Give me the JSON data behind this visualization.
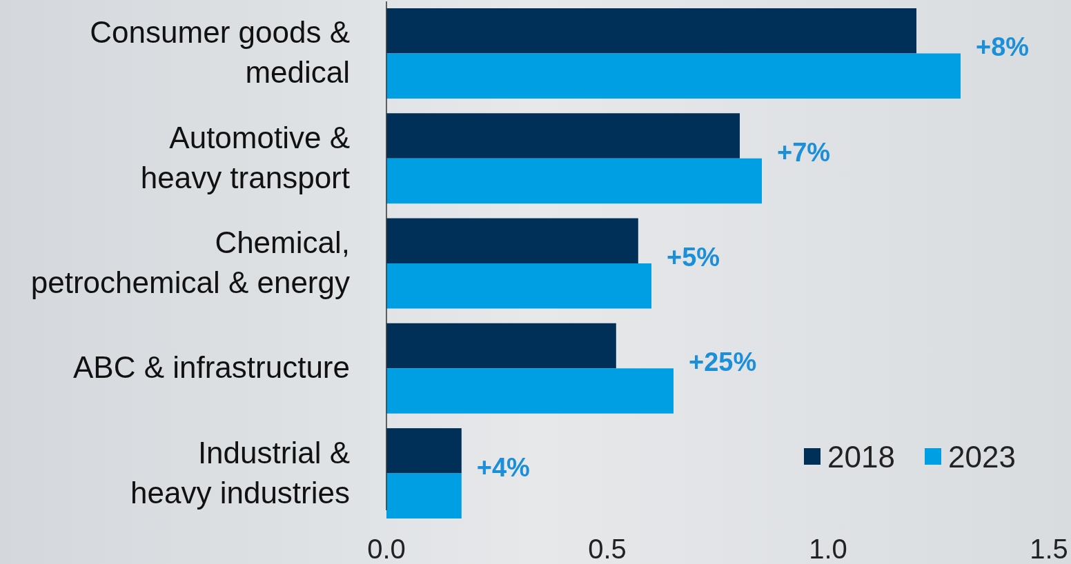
{
  "chart_data": {
    "type": "bar",
    "orientation": "horizontal",
    "categories": [
      "Consumer goods & medical",
      "Automotive & heavy transport",
      "Chemical, petrochemical & energy",
      "ABC & infrastructure",
      "Industrial & heavy industries"
    ],
    "series": [
      {
        "name": "2018",
        "color": "#003057",
        "values": [
          1.2,
          0.8,
          0.57,
          0.52,
          0.17
        ]
      },
      {
        "name": "2023",
        "color": "#009fe3",
        "values": [
          1.3,
          0.85,
          0.6,
          0.65,
          0.17
        ]
      }
    ],
    "xlim": [
      0,
      1.5
    ],
    "xticks": [
      {
        "value": 0,
        "label": "0.0"
      },
      {
        "value": 0.5,
        "label": "0.5"
      },
      {
        "value": 1,
        "label": "1.0"
      },
      {
        "value": 1.5,
        "label": "1.5"
      }
    ],
    "annotations": [
      "+8%",
      "+7%",
      "+5%",
      "+25%",
      "+4%"
    ],
    "legend": "bottom right",
    "grid": false
  }
}
